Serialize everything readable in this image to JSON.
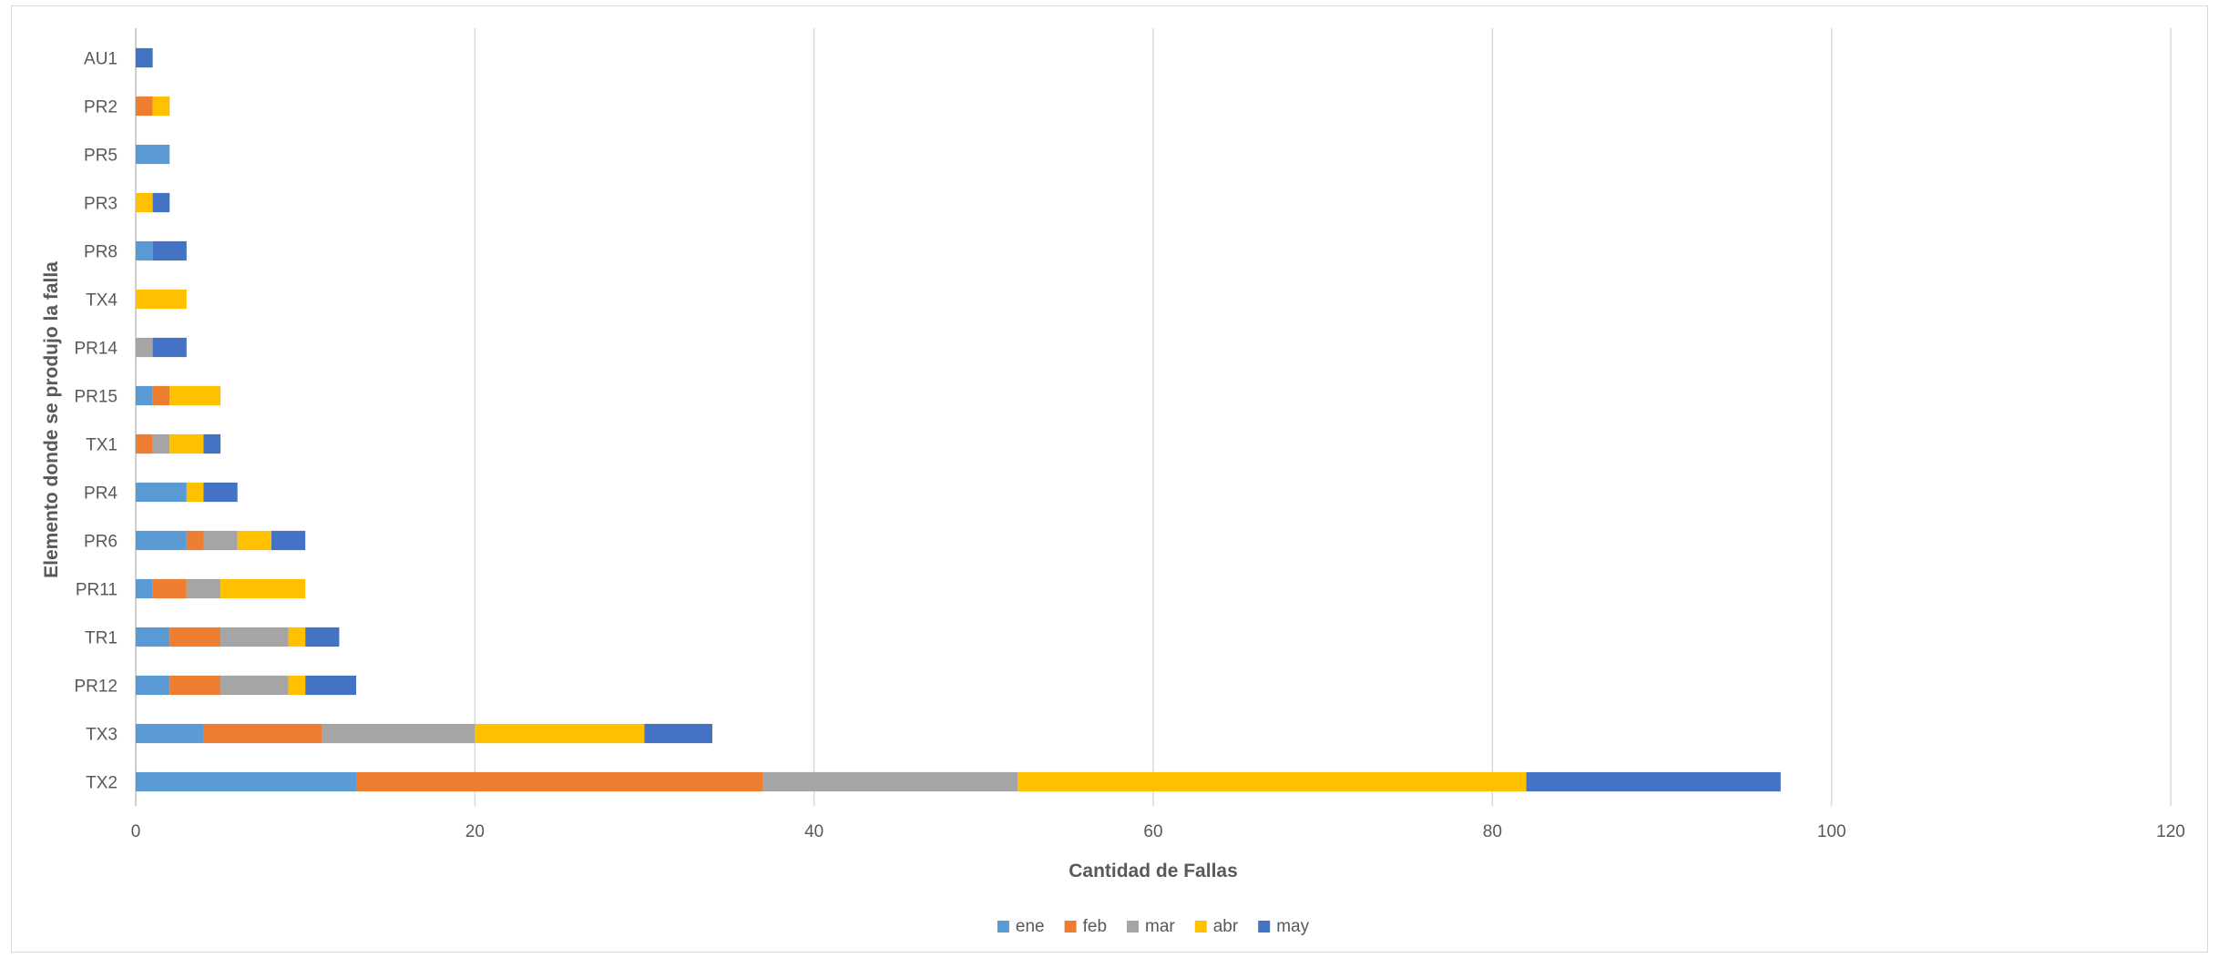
{
  "chart_data": {
    "type": "bar",
    "orientation": "horizontal",
    "stacked": true,
    "title": "",
    "xlabel": "Cantidad de Fallas",
    "ylabel": "Elemento donde se produjo la falla",
    "xlim": [
      0,
      120
    ],
    "xticks": [
      0,
      20,
      40,
      60,
      80,
      100,
      120
    ],
    "grid": "vertical",
    "legend_position": "bottom",
    "categories": [
      "AU1",
      "PR2",
      "PR5",
      "PR3",
      "PR8",
      "TX4",
      "PR14",
      "PR15",
      "TX1",
      "PR4",
      "PR6",
      "PR11",
      "TR1",
      "PR12",
      "TX3",
      "TX2"
    ],
    "series": [
      {
        "name": "ene",
        "color": "#5B9BD5",
        "values": [
          0,
          0,
          2,
          0,
          1,
          0,
          0,
          1,
          0,
          3,
          3,
          1,
          2,
          2,
          4,
          13
        ]
      },
      {
        "name": "feb",
        "color": "#ED7D31",
        "values": [
          0,
          1,
          0,
          0,
          0,
          0,
          0,
          1,
          1,
          0,
          1,
          2,
          3,
          3,
          7,
          24
        ]
      },
      {
        "name": "mar",
        "color": "#A5A5A5",
        "values": [
          0,
          0,
          0,
          0,
          0,
          0,
          1,
          0,
          1,
          0,
          2,
          2,
          4,
          4,
          9,
          15
        ]
      },
      {
        "name": "abr",
        "color": "#FFC000",
        "values": [
          0,
          1,
          0,
          1,
          0,
          3,
          0,
          3,
          2,
          1,
          2,
          5,
          1,
          1,
          10,
          30
        ]
      },
      {
        "name": "may",
        "color": "#4472C4",
        "values": [
          1,
          0,
          0,
          1,
          2,
          0,
          2,
          0,
          1,
          2,
          2,
          0,
          2,
          3,
          4,
          15
        ]
      }
    ]
  }
}
